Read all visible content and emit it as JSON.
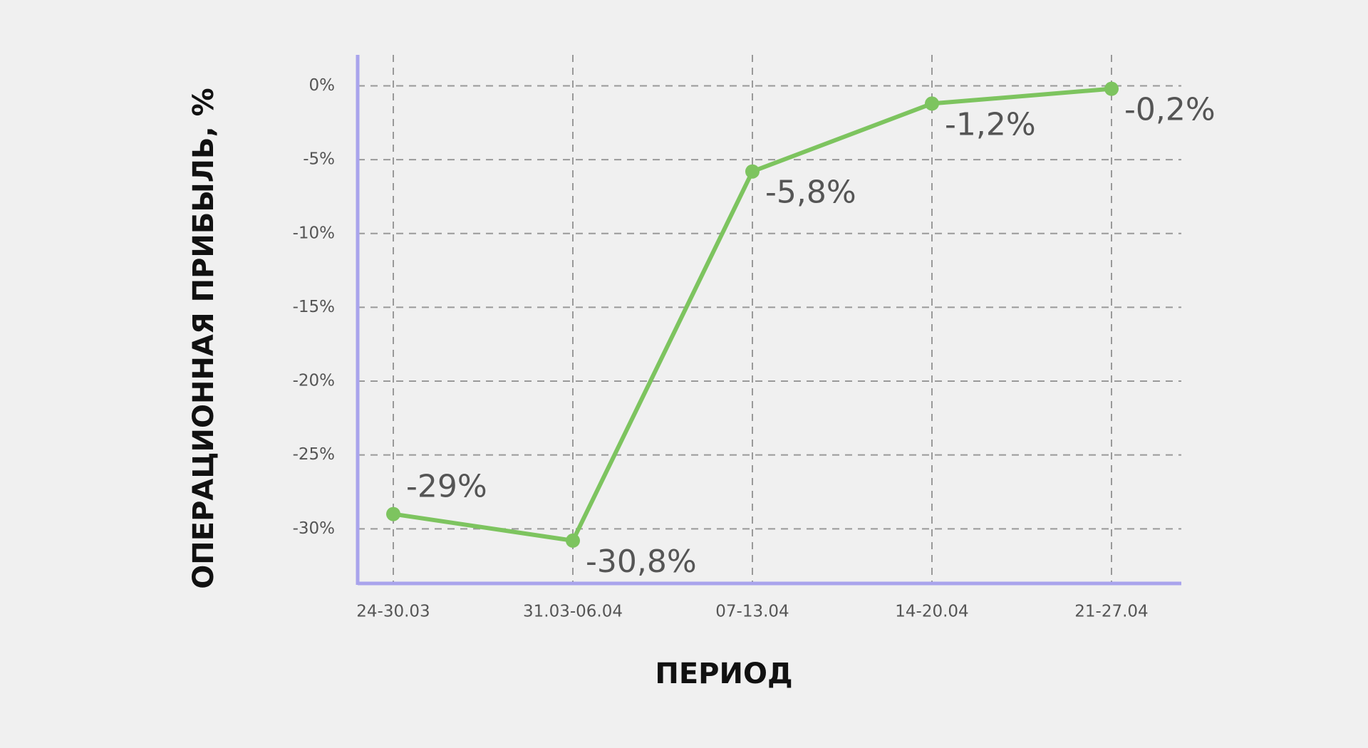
{
  "chart_data": {
    "type": "line",
    "x_label": "ПЕРИОД",
    "y_label": "ОПЕРАЦИОННАЯ ПРИБЫЛЬ, %",
    "categories": [
      "24-30.03",
      "31.03-06.04",
      "07-13.04",
      "14-20.04",
      "21-27.04"
    ],
    "values": [
      -29,
      -30.8,
      -5.8,
      -1.2,
      -0.2
    ],
    "value_labels": [
      "-29%",
      "-30,8%",
      "-5,8%",
      "-1,2%",
      "-0,2%"
    ],
    "color": "#7dc45f",
    "ylim": [
      -33.7,
      2.1
    ],
    "yticks": [
      {
        "value": 0,
        "label": "0%"
      },
      {
        "value": -5,
        "label": "-5%"
      },
      {
        "value": -10,
        "label": "-10%"
      },
      {
        "value": -15,
        "label": "-15%"
      },
      {
        "value": -20,
        "label": "-20%"
      },
      {
        "value": -25,
        "label": "-25%"
      },
      {
        "value": -30,
        "label": "-30%"
      }
    ],
    "grid": true
  }
}
